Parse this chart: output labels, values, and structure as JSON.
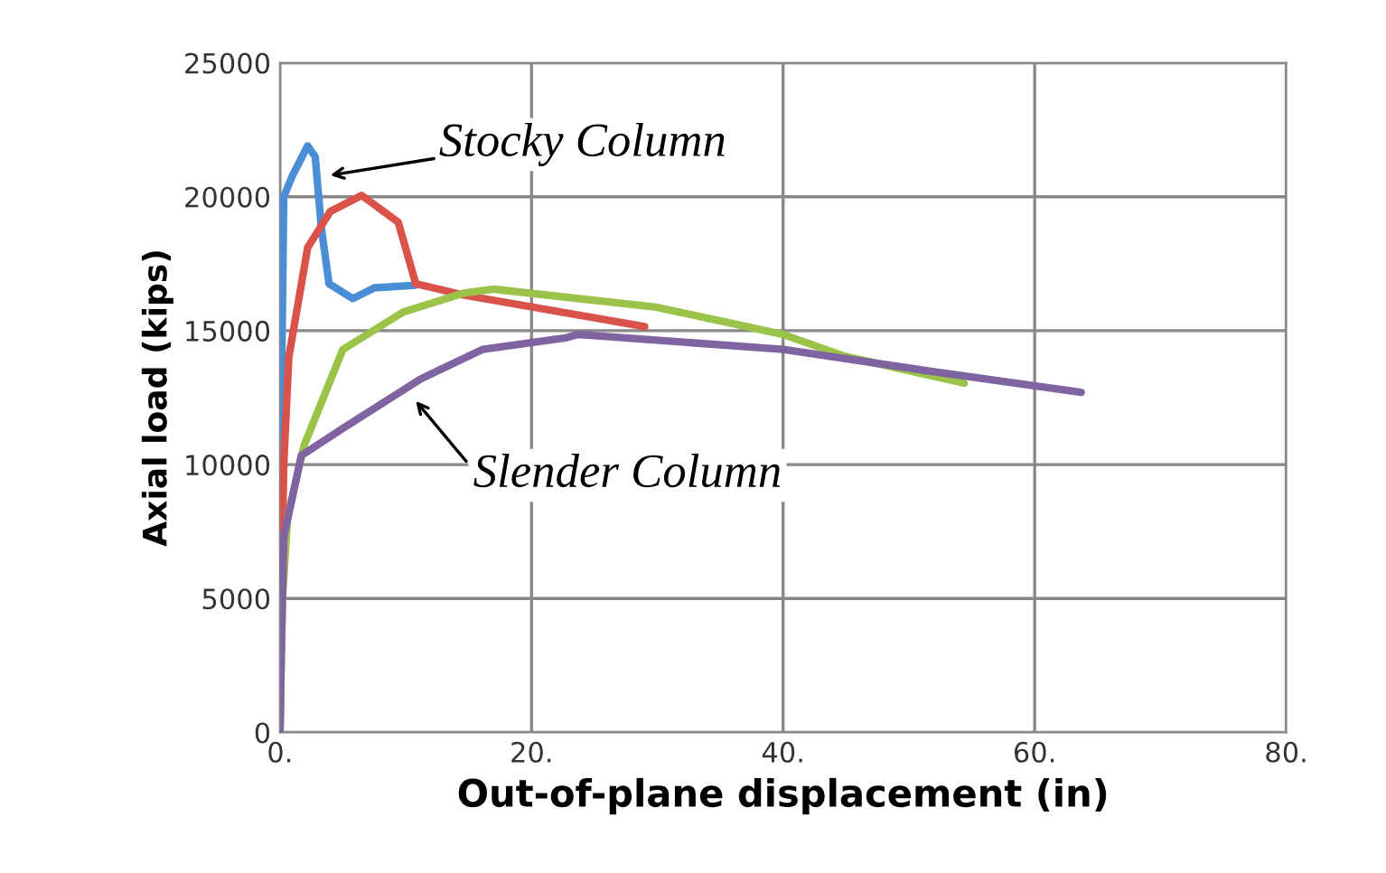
{
  "chart_data": {
    "type": "line",
    "xlabel": "Out-of-plane displacement (in)",
    "ylabel": "Axial load (kips)",
    "xlim": [
      0,
      80
    ],
    "xticks": [
      {
        "value": 0,
        "label": "0."
      },
      {
        "value": 20,
        "label": "20."
      },
      {
        "value": 40,
        "label": "40."
      },
      {
        "value": 60,
        "label": "60."
      },
      {
        "value": 80,
        "label": "80."
      }
    ],
    "ylim": [
      0,
      25000
    ],
    "yticks": [
      0,
      5000,
      10000,
      15000,
      20000,
      25000
    ],
    "grid": true,
    "legend": false,
    "marker": "none",
    "line_style": "solid",
    "series": [
      {
        "color": "#4a8fd6",
        "x": [
          0,
          0.1,
          0.3,
          1,
          2.2,
          2.8,
          3.3,
          3.9,
          5.8,
          7.5,
          10.8
        ],
        "values": [
          0,
          12000,
          20000,
          20800,
          21900,
          21500,
          18800,
          16750,
          16200,
          16600,
          16700
        ]
      },
      {
        "color": "#d9534a",
        "x": [
          0,
          0.1,
          0.3,
          0.7,
          2.2,
          4.0,
          6.5,
          9.4,
          10.1,
          10.8,
          14.6,
          29
        ],
        "values": [
          0,
          5000,
          10000,
          14000,
          18100,
          19450,
          20050,
          19050,
          17900,
          16750,
          16330,
          15150
        ]
      },
      {
        "color": "#9bc34a",
        "x": [
          0,
          0.2,
          0.6,
          1.9,
          5,
          9.8,
          14.6,
          17,
          29.9,
          40,
          44.9,
          54.4
        ],
        "values": [
          0,
          5000,
          8000,
          10700,
          14300,
          15700,
          16400,
          16550,
          15880,
          14860,
          14050,
          13040
        ]
      },
      {
        "color": "#8064a2",
        "x": [
          0,
          0.1,
          0.3,
          1.7,
          5,
          11.2,
          16.1,
          22.7,
          23.7,
          40,
          51.5,
          63.7
        ],
        "values": [
          0,
          3000,
          7300,
          10340,
          11350,
          13200,
          14300,
          14730,
          14860,
          14300,
          13500,
          12700
        ]
      }
    ],
    "annotations": [
      "Stocky Column",
      "Slender Column"
    ]
  }
}
